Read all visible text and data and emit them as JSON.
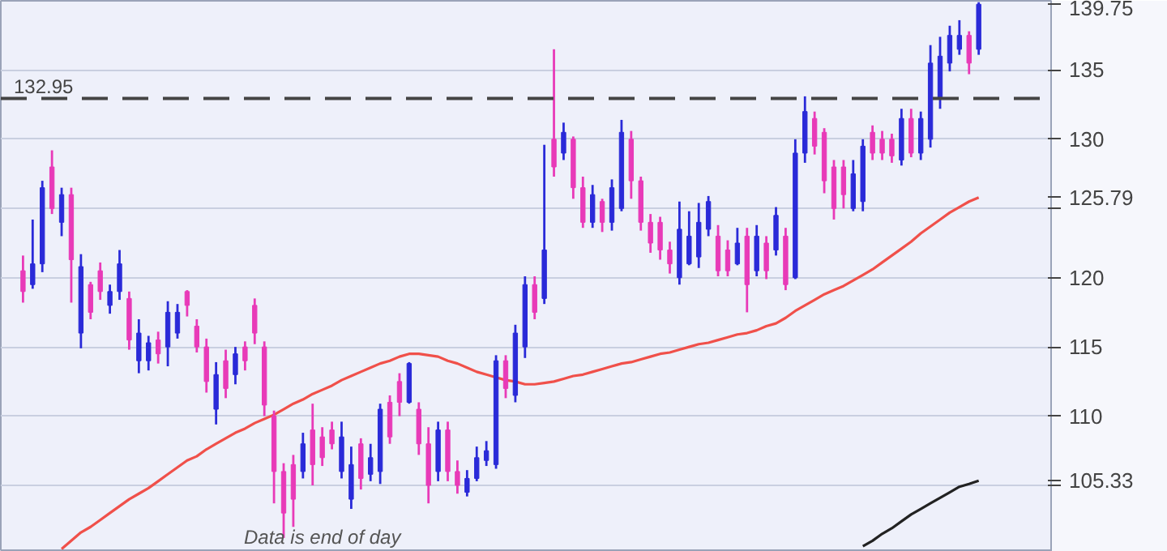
{
  "chart_data": {
    "type": "candlestick",
    "categories": [
      null,
      null,
      null,
      null,
      null,
      null,
      null,
      null,
      null,
      null,
      null,
      null,
      null,
      null,
      null,
      null,
      null,
      null,
      null,
      null,
      null,
      null,
      null,
      null,
      null,
      null,
      null,
      null,
      null,
      null,
      null,
      null,
      null,
      null,
      null,
      null,
      null,
      null,
      null,
      null,
      null,
      null,
      null,
      null,
      null,
      null,
      null,
      null,
      null,
      null,
      null,
      null,
      null,
      null,
      null,
      null,
      null,
      null,
      null,
      null,
      null,
      null,
      null,
      null,
      null,
      null,
      null,
      null,
      null,
      null,
      null,
      null,
      null,
      null,
      null,
      null,
      null,
      null,
      null,
      null,
      null,
      null,
      null,
      null,
      null,
      null,
      null,
      null,
      null,
      null,
      null,
      null,
      null,
      null,
      null,
      null,
      null,
      null,
      null,
      null
    ],
    "ohlc": [
      [
        120.5,
        121.6,
        118.2,
        119
      ],
      [
        119.5,
        124.2,
        119.2,
        121
      ],
      [
        121,
        127.0,
        120.4,
        126.5
      ],
      [
        128,
        129.2,
        124.6,
        125
      ],
      [
        124,
        126.5,
        123.0,
        126
      ],
      [
        126,
        126.5,
        118.2,
        121.3
      ],
      [
        116,
        121.7,
        114.9,
        120.8
      ],
      [
        119.5,
        119.7,
        117.0,
        117.5
      ],
      [
        120.5,
        121.1,
        118.4,
        119
      ],
      [
        118,
        119.5,
        117.4,
        119
      ],
      [
        119,
        122.0,
        118.4,
        121
      ],
      [
        118.5,
        119.0,
        114.8,
        115.5
      ],
      [
        114,
        117.0,
        113.1,
        116
      ],
      [
        114,
        115.8,
        113.3,
        115.3
      ],
      [
        115.5,
        116.1,
        113.8,
        114.5
      ],
      [
        115,
        118.3,
        113.6,
        117.5
      ],
      [
        116,
        118.1,
        115.6,
        117.5
      ],
      [
        119,
        119.1,
        117.2,
        118
      ],
      [
        116.5,
        117.0,
        114.6,
        115
      ],
      [
        115,
        115.6,
        111.7,
        112.5
      ],
      [
        110.5,
        113.9,
        109.4,
        113
      ],
      [
        114,
        114.8,
        111.3,
        112
      ],
      [
        113,
        115.0,
        112.3,
        114.5
      ],
      [
        115,
        115.4,
        113.3,
        114
      ],
      [
        118,
        118.5,
        115.2,
        116
      ],
      [
        115,
        115.4,
        110.0,
        110.8
      ],
      [
        110,
        110.4,
        103.7,
        106
      ],
      [
        106,
        106.6,
        101.2,
        103
      ],
      [
        106.5,
        107.2,
        102.0,
        104
      ],
      [
        106,
        108.8,
        105.5,
        108
      ],
      [
        109,
        110.9,
        105.0,
        106.5
      ],
      [
        108.5,
        109.2,
        106.4,
        107
      ],
      [
        109,
        109.6,
        107.6,
        108
      ],
      [
        106,
        109.6,
        105.5,
        108.5
      ],
      [
        104,
        107.8,
        103.3,
        106.5
      ],
      [
        108,
        108.4,
        104.7,
        105.5
      ],
      [
        105.8,
        108.0,
        105.3,
        107
      ],
      [
        106,
        110.9,
        105.1,
        110.5
      ],
      [
        111,
        111.5,
        108.0,
        108.5
      ],
      [
        112.5,
        113.1,
        110.0,
        111
      ],
      [
        111,
        113.9,
        110.9,
        113.8
      ],
      [
        110.5,
        111.0,
        107.2,
        108
      ],
      [
        108,
        109.2,
        103.7,
        105
      ],
      [
        106,
        109.6,
        105.3,
        109
      ],
      [
        109,
        109.6,
        105.3,
        106
      ],
      [
        106,
        106.8,
        104.4,
        105
      ],
      [
        104.5,
        106.1,
        104.2,
        105.5
      ],
      [
        105.5,
        107.8,
        105.3,
        107
      ],
      [
        106.8,
        108.2,
        106.4,
        107.5
      ],
      [
        106.5,
        114.4,
        106.2,
        114
      ],
      [
        114,
        114.4,
        111.3,
        112
      ],
      [
        111.5,
        116.6,
        111.0,
        116
      ],
      [
        115,
        120.1,
        114.2,
        119.5
      ],
      [
        119.5,
        120.1,
        117.0,
        117.5
      ],
      [
        118.5,
        129.6,
        118.1,
        122
      ],
      [
        130,
        136.5,
        127.3,
        128
      ],
      [
        129,
        131.2,
        128.5,
        130.5
      ],
      [
        130,
        130.2,
        125.7,
        126.5
      ],
      [
        126.5,
        127.3,
        123.6,
        124
      ],
      [
        124,
        126.7,
        123.6,
        126
      ],
      [
        125.5,
        125.7,
        123.3,
        124
      ],
      [
        124,
        127.1,
        123.4,
        126.5
      ],
      [
        125,
        131.4,
        124.8,
        130.5
      ],
      [
        130,
        130.6,
        125.7,
        127
      ],
      [
        127,
        127.3,
        123.4,
        124
      ],
      [
        124,
        124.6,
        121.8,
        122.5
      ],
      [
        124,
        124.4,
        121.3,
        122
      ],
      [
        122,
        122.6,
        120.3,
        121
      ],
      [
        120,
        125.5,
        119.5,
        123.5
      ],
      [
        121,
        124.8,
        120.9,
        123
      ],
      [
        121.5,
        125.4,
        120.7,
        124
      ],
      [
        123.5,
        125.9,
        123.0,
        125.5
      ],
      [
        123,
        123.8,
        120.1,
        120.5
      ],
      [
        122,
        122.7,
        120.1,
        120.5
      ],
      [
        121,
        123.6,
        120.9,
        122.5
      ],
      [
        123,
        123.6,
        117.5,
        119.5
      ],
      [
        120.5,
        123.8,
        120.1,
        123
      ],
      [
        122.5,
        123.0,
        119.9,
        120.5
      ],
      [
        122,
        125.1,
        121.6,
        124.5
      ],
      [
        123,
        123.6,
        119.1,
        119.5
      ],
      [
        120,
        130.0,
        119.9,
        129
      ],
      [
        129,
        133.1,
        128.3,
        132
      ],
      [
        131.5,
        132.0,
        128.9,
        129.5
      ],
      [
        130.5,
        130.8,
        126.1,
        127
      ],
      [
        128,
        128.5,
        124.2,
        125
      ],
      [
        128,
        128.5,
        125.0,
        126
      ],
      [
        125,
        128.5,
        124.8,
        127.5
      ],
      [
        125.5,
        130.0,
        124.8,
        129.5
      ],
      [
        130.5,
        131.0,
        128.5,
        129
      ],
      [
        130,
        130.6,
        128.5,
        129
      ],
      [
        130,
        130.4,
        128.3,
        128.8
      ],
      [
        128.5,
        132.2,
        128.1,
        131.5
      ],
      [
        131.5,
        132.2,
        128.7,
        129
      ],
      [
        129,
        132.0,
        128.5,
        131.5
      ],
      [
        130,
        136.8,
        129.4,
        135.5
      ],
      [
        133,
        137.4,
        132.2,
        136
      ],
      [
        135.5,
        138.2,
        134.9,
        137.5
      ],
      [
        136.5,
        138.6,
        136.1,
        137.5
      ],
      [
        137.5,
        137.8,
        134.7,
        135.5
      ],
      [
        136.5,
        139.9,
        136.1,
        139.75
      ]
    ],
    "colors": [
      "#e83ab8",
      "#2a2ad8",
      "#2a2ad8",
      "#e83ab8",
      "#2a2ad8",
      "#e83ab8",
      "#2a2ad8",
      "#e83ab8",
      "#e83ab8",
      "#2a2ad8",
      "#2a2ad8",
      "#e83ab8",
      "#2a2ad8",
      "#2a2ad8",
      "#e83ab8",
      "#2a2ad8",
      "#2a2ad8",
      "#e83ab8",
      "#e83ab8",
      "#e83ab8",
      "#2a2ad8",
      "#e83ab8",
      "#2a2ad8",
      "#e83ab8",
      "#e83ab8",
      "#e83ab8",
      "#e83ab8",
      "#e83ab8",
      "#e83ab8",
      "#2a2ad8",
      "#e83ab8",
      "#e83ab8",
      "#e83ab8",
      "#2a2ad8",
      "#2a2ad8",
      "#e83ab8",
      "#2a2ad8",
      "#2a2ad8",
      "#e83ab8",
      "#e83ab8",
      "#2a2ad8",
      "#e83ab8",
      "#e83ab8",
      "#2a2ad8",
      "#e83ab8",
      "#e83ab8",
      "#2a2ad8",
      "#2a2ad8",
      "#2a2ad8",
      "#2a2ad8",
      "#e83ab8",
      "#2a2ad8",
      "#2a2ad8",
      "#e83ab8",
      "#2a2ad8",
      "#e83ab8",
      "#2a2ad8",
      "#e83ab8",
      "#e83ab8",
      "#2a2ad8",
      "#e83ab8",
      "#2a2ad8",
      "#2a2ad8",
      "#e83ab8",
      "#e83ab8",
      "#e83ab8",
      "#e83ab8",
      "#e83ab8",
      "#2a2ad8",
      "#2a2ad8",
      "#2a2ad8",
      "#2a2ad8",
      "#e83ab8",
      "#e83ab8",
      "#2a2ad8",
      "#e83ab8",
      "#2a2ad8",
      "#e83ab8",
      "#2a2ad8",
      "#e83ab8",
      "#2a2ad8",
      "#2a2ad8",
      "#e83ab8",
      "#e83ab8",
      "#e83ab8",
      "#e83ab8",
      "#2a2ad8",
      "#2a2ad8",
      "#e83ab8",
      "#e83ab8",
      "#e83ab8",
      "#2a2ad8",
      "#e83ab8",
      "#2a2ad8",
      "#2a2ad8",
      "#2a2ad8",
      "#2a2ad8",
      "#2a2ad8",
      "#e83ab8",
      "#2a2ad8"
    ],
    "series": [
      {
        "type": "line",
        "color": "#f0504a",
        "values": [
          null,
          null,
          null,
          null,
          100.4,
          101.0,
          101.6,
          102.0,
          102.5,
          103.0,
          103.5,
          104.0,
          104.4,
          104.8,
          105.3,
          105.8,
          106.3,
          106.8,
          107.1,
          107.6,
          108.0,
          108.4,
          108.8,
          109.1,
          109.5,
          109.8,
          110.1,
          110.5,
          110.9,
          111.2,
          111.6,
          111.9,
          112.2,
          112.6,
          112.9,
          113.2,
          113.5,
          113.8,
          114.0,
          114.3,
          114.5,
          114.5,
          114.4,
          114.3,
          114.0,
          113.8,
          113.5,
          113.2,
          113.0,
          112.8,
          112.6,
          112.5,
          112.3,
          112.3,
          112.4,
          112.5,
          112.7,
          112.9,
          113.0,
          113.2,
          113.4,
          113.6,
          113.8,
          113.9,
          114.1,
          114.3,
          114.5,
          114.6,
          114.8,
          115.0,
          115.2,
          115.3,
          115.5,
          115.7,
          115.9,
          116.0,
          116.2,
          116.5,
          116.7,
          117.1,
          117.6,
          118.0,
          118.4,
          118.8,
          119.1,
          119.4,
          119.8,
          120.2,
          120.6,
          121.1,
          121.6,
          122.1,
          122.6,
          123.2,
          123.7,
          124.2,
          124.7,
          125.1,
          125.5,
          125.79
        ]
      },
      {
        "type": "line",
        "color": "#222222",
        "values": [
          null,
          null,
          null,
          null,
          null,
          null,
          null,
          null,
          null,
          null,
          null,
          null,
          null,
          null,
          null,
          null,
          null,
          null,
          null,
          null,
          null,
          null,
          null,
          null,
          null,
          null,
          null,
          null,
          null,
          null,
          null,
          null,
          null,
          null,
          null,
          null,
          null,
          null,
          null,
          null,
          null,
          null,
          null,
          null,
          null,
          null,
          null,
          null,
          null,
          null,
          null,
          null,
          null,
          null,
          null,
          null,
          null,
          null,
          null,
          null,
          null,
          null,
          null,
          null,
          null,
          null,
          null,
          null,
          null,
          null,
          null,
          null,
          null,
          null,
          null,
          null,
          null,
          null,
          null,
          null,
          null,
          null,
          null,
          null,
          null,
          null,
          null,
          100.6,
          101.0,
          101.5,
          101.9,
          102.4,
          102.9,
          103.3,
          103.7,
          104.1,
          104.5,
          104.9,
          105.1,
          105.33
        ]
      }
    ],
    "ylim": [
      100.2,
      140
    ],
    "yticks": [
      {
        "value": 105,
        "label": null
      },
      {
        "value": 105.33,
        "label": "105.33"
      },
      110,
      115,
      120,
      {
        "value": 125,
        "label": null
      },
      {
        "value": 125.79,
        "label": "125.79"
      },
      130,
      135,
      {
        "value": 139.75,
        "label": "139.75"
      }
    ],
    "grid": "y",
    "ref_lines": [
      {
        "axis": "y",
        "value": 132.95,
        "label": "132.95",
        "color": "#444444",
        "line_style": "dashed"
      }
    ],
    "annotations": [
      "Data is end of day"
    ]
  }
}
